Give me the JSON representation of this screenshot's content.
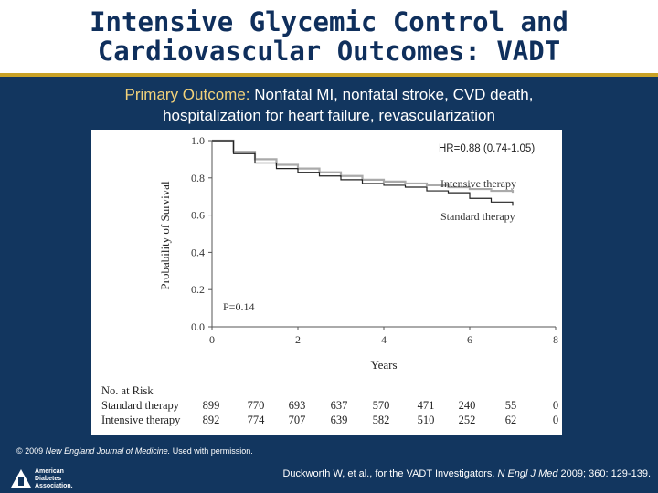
{
  "slide": {
    "title_line1": "Intensive Glycemic Control and",
    "title_line2": "Cardiovascular Outcomes: VADT",
    "subtitle_prefix": "Primary Outcome:",
    "subtitle_rest_line1": " Nonfatal MI, nonfatal stroke, CVD death,",
    "subtitle_line2": "hospitalization for heart failure, revascularization",
    "copyright_year": "© 2009",
    "copyright_journal": "New England Journal of Medicine.",
    "copyright_rest": " Used with permission.",
    "logo_line1": "American",
    "logo_line2": "Diabetes",
    "logo_line3": "Association.",
    "citation_authors": "Duckworth W, et al., for the VADT Investigators.",
    "citation_journal": "N Engl J Med",
    "citation_rest": " 2009; 360: 129-139."
  },
  "colors": {
    "background": "#12365f",
    "accent_gold": "#c9a227",
    "standard_curve": "#222222",
    "intensive_curve": "#aaaaaa"
  },
  "chart_data": {
    "type": "line",
    "xlabel": "Years",
    "ylabel": "Probability of Survival",
    "xlim": [
      0,
      8
    ],
    "ylim": [
      0.0,
      1.0
    ],
    "x_ticks": [
      "0",
      "2",
      "4",
      "6",
      "8"
    ],
    "y_ticks": [
      "0.0",
      "0.2",
      "0.4",
      "0.6",
      "0.8",
      "1.0"
    ],
    "hr_annotation": "HR=0.88 (0.74-1.05)",
    "p_value": "P=0.14",
    "series": [
      {
        "name": "Intensive therapy",
        "x": [
          0,
          0.5,
          1,
          1.5,
          2,
          2.5,
          3,
          3.5,
          4,
          4.5,
          5,
          5.5,
          6,
          6.5,
          7
        ],
        "y": [
          1.0,
          0.94,
          0.9,
          0.87,
          0.85,
          0.83,
          0.81,
          0.79,
          0.78,
          0.77,
          0.76,
          0.75,
          0.74,
          0.73,
          0.72
        ]
      },
      {
        "name": "Standard therapy",
        "x": [
          0,
          0.5,
          1,
          1.5,
          2,
          2.5,
          3,
          3.5,
          4,
          4.5,
          5,
          5.5,
          6,
          6.5,
          7
        ],
        "y": [
          1.0,
          0.93,
          0.88,
          0.85,
          0.83,
          0.81,
          0.79,
          0.77,
          0.76,
          0.75,
          0.73,
          0.72,
          0.69,
          0.67,
          0.65
        ]
      }
    ],
    "risk_table": {
      "header": "No. at Risk",
      "rows": [
        {
          "label": "Standard therapy",
          "values": [
            "899",
            "770",
            "693",
            "637",
            "570",
            "471",
            "240",
            "55",
            "0"
          ]
        },
        {
          "label": "Intensive therapy",
          "values": [
            "892",
            "774",
            "707",
            "639",
            "582",
            "510",
            "252",
            "62",
            "0"
          ]
        }
      ]
    }
  }
}
